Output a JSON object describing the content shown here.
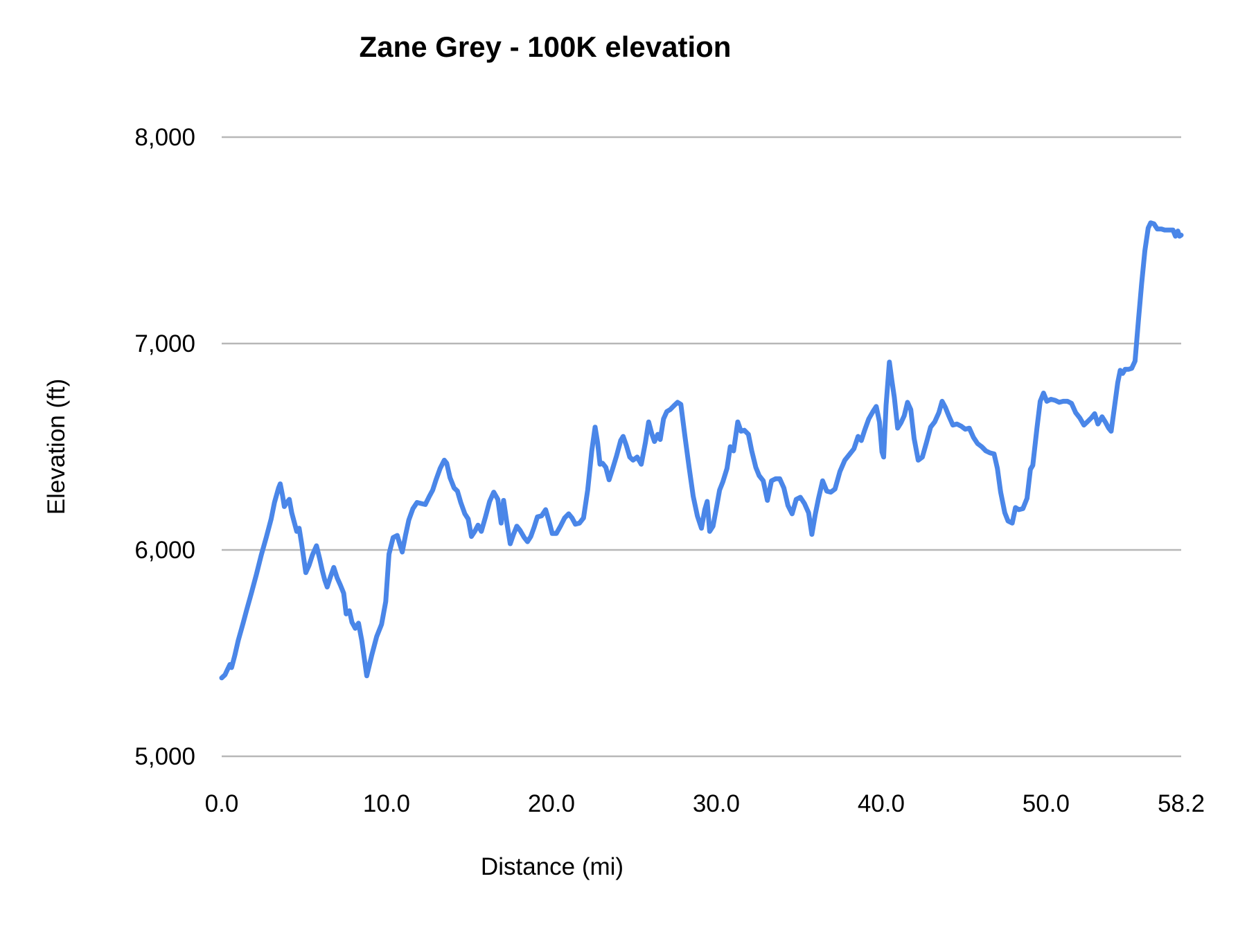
{
  "chart_data": {
    "type": "line",
    "title": "Zane Grey - 100K elevation",
    "xlabel": "Distance (mi)",
    "ylabel": "Elevation (ft)",
    "xlim": [
      0,
      58.2
    ],
    "ylim": [
      5000,
      8000
    ],
    "grid": "horizontal-only",
    "legend": "none",
    "line_color": "#4a86e8",
    "gridline_color": "#b7b7b7",
    "text_color": "#000000",
    "x_ticks": [
      {
        "v": 0,
        "label": "0.0"
      },
      {
        "v": 10,
        "label": "10.0"
      },
      {
        "v": 20,
        "label": "20.0"
      },
      {
        "v": 30,
        "label": "30.0"
      },
      {
        "v": 40,
        "label": "40.0"
      },
      {
        "v": 50,
        "label": "50.0"
      },
      {
        "v": 58.2,
        "label": "58.2"
      }
    ],
    "y_ticks": [
      {
        "v": 5000,
        "label": "5,000"
      },
      {
        "v": 6000,
        "label": "6,000"
      },
      {
        "v": 7000,
        "label": "7,000"
      },
      {
        "v": 8000,
        "label": "8,000"
      }
    ],
    "series": [
      {
        "name": "elevation",
        "points": [
          [
            0,
            5380
          ],
          [
            0.2,
            5395
          ],
          [
            0.35,
            5420
          ],
          [
            0.5,
            5445
          ],
          [
            0.6,
            5430
          ],
          [
            0.8,
            5490
          ],
          [
            1.0,
            5560
          ],
          [
            1.3,
            5645
          ],
          [
            1.5,
            5705
          ],
          [
            1.8,
            5790
          ],
          [
            2.1,
            5880
          ],
          [
            2.4,
            5975
          ],
          [
            2.7,
            6060
          ],
          [
            3.0,
            6150
          ],
          [
            3.2,
            6230
          ],
          [
            3.45,
            6300
          ],
          [
            3.55,
            6320
          ],
          [
            3.7,
            6260
          ],
          [
            3.8,
            6210
          ],
          [
            3.95,
            6230
          ],
          [
            4.1,
            6245
          ],
          [
            4.25,
            6180
          ],
          [
            4.4,
            6135
          ],
          [
            4.55,
            6090
          ],
          [
            4.7,
            6105
          ],
          [
            4.85,
            6030
          ],
          [
            5.1,
            5890
          ],
          [
            5.3,
            5925
          ],
          [
            5.5,
            5975
          ],
          [
            5.75,
            6020
          ],
          [
            5.95,
            5955
          ],
          [
            6.1,
            5900
          ],
          [
            6.25,
            5855
          ],
          [
            6.4,
            5820
          ],
          [
            6.6,
            5870
          ],
          [
            6.8,
            5915
          ],
          [
            7.0,
            5865
          ],
          [
            7.2,
            5830
          ],
          [
            7.4,
            5790
          ],
          [
            7.55,
            5690
          ],
          [
            7.75,
            5705
          ],
          [
            7.9,
            5650
          ],
          [
            8.1,
            5620
          ],
          [
            8.3,
            5645
          ],
          [
            8.5,
            5560
          ],
          [
            8.8,
            5390
          ],
          [
            9.1,
            5490
          ],
          [
            9.4,
            5580
          ],
          [
            9.7,
            5640
          ],
          [
            9.95,
            5750
          ],
          [
            10.15,
            5980
          ],
          [
            10.4,
            6060
          ],
          [
            10.65,
            6070
          ],
          [
            10.8,
            6030
          ],
          [
            10.95,
            5990
          ],
          [
            11.15,
            6070
          ],
          [
            11.35,
            6145
          ],
          [
            11.6,
            6200
          ],
          [
            11.85,
            6230
          ],
          [
            12.1,
            6225
          ],
          [
            12.35,
            6220
          ],
          [
            12.6,
            6260
          ],
          [
            12.8,
            6290
          ],
          [
            13.0,
            6340
          ],
          [
            13.25,
            6395
          ],
          [
            13.5,
            6435
          ],
          [
            13.65,
            6420
          ],
          [
            13.85,
            6350
          ],
          [
            14.1,
            6300
          ],
          [
            14.3,
            6285
          ],
          [
            14.5,
            6230
          ],
          [
            14.75,
            6175
          ],
          [
            14.95,
            6150
          ],
          [
            15.15,
            6065
          ],
          [
            15.35,
            6090
          ],
          [
            15.55,
            6120
          ],
          [
            15.75,
            6090
          ],
          [
            16.0,
            6160
          ],
          [
            16.25,
            6235
          ],
          [
            16.5,
            6280
          ],
          [
            16.75,
            6245
          ],
          [
            16.95,
            6130
          ],
          [
            17.1,
            6240
          ],
          [
            17.3,
            6130
          ],
          [
            17.5,
            6030
          ],
          [
            17.7,
            6075
          ],
          [
            17.9,
            6115
          ],
          [
            18.1,
            6095
          ],
          [
            18.35,
            6060
          ],
          [
            18.55,
            6040
          ],
          [
            18.75,
            6065
          ],
          [
            18.95,
            6110
          ],
          [
            19.15,
            6160
          ],
          [
            19.4,
            6165
          ],
          [
            19.65,
            6195
          ],
          [
            19.85,
            6140
          ],
          [
            20.05,
            6080
          ],
          [
            20.3,
            6080
          ],
          [
            20.55,
            6115
          ],
          [
            20.8,
            6155
          ],
          [
            21.05,
            6175
          ],
          [
            21.25,
            6155
          ],
          [
            21.45,
            6125
          ],
          [
            21.7,
            6130
          ],
          [
            21.95,
            6155
          ],
          [
            22.2,
            6290
          ],
          [
            22.45,
            6480
          ],
          [
            22.65,
            6595
          ],
          [
            22.8,
            6520
          ],
          [
            22.95,
            6415
          ],
          [
            23.1,
            6420
          ],
          [
            23.3,
            6400
          ],
          [
            23.5,
            6340
          ],
          [
            23.7,
            6390
          ],
          [
            23.95,
            6455
          ],
          [
            24.2,
            6530
          ],
          [
            24.35,
            6550
          ],
          [
            24.55,
            6505
          ],
          [
            24.75,
            6450
          ],
          [
            24.95,
            6435
          ],
          [
            25.2,
            6450
          ],
          [
            25.45,
            6415
          ],
          [
            25.7,
            6520
          ],
          [
            25.9,
            6620
          ],
          [
            26.1,
            6560
          ],
          [
            26.25,
            6525
          ],
          [
            26.45,
            6560
          ],
          [
            26.6,
            6535
          ],
          [
            26.8,
            6635
          ],
          [
            27.0,
            6670
          ],
          [
            27.2,
            6680
          ],
          [
            27.45,
            6700
          ],
          [
            27.65,
            6715
          ],
          [
            27.85,
            6705
          ],
          [
            28.1,
            6550
          ],
          [
            28.35,
            6400
          ],
          [
            28.6,
            6260
          ],
          [
            28.85,
            6165
          ],
          [
            29.1,
            6105
          ],
          [
            29.3,
            6195
          ],
          [
            29.45,
            6235
          ],
          [
            29.6,
            6090
          ],
          [
            29.8,
            6115
          ],
          [
            30.0,
            6200
          ],
          [
            30.2,
            6290
          ],
          [
            30.4,
            6330
          ],
          [
            30.65,
            6395
          ],
          [
            30.85,
            6500
          ],
          [
            31.05,
            6480
          ],
          [
            31.3,
            6620
          ],
          [
            31.5,
            6575
          ],
          [
            31.7,
            6580
          ],
          [
            31.95,
            6560
          ],
          [
            32.15,
            6480
          ],
          [
            32.4,
            6400
          ],
          [
            32.6,
            6360
          ],
          [
            32.85,
            6335
          ],
          [
            33.1,
            6240
          ],
          [
            33.35,
            6335
          ],
          [
            33.6,
            6345
          ],
          [
            33.85,
            6345
          ],
          [
            34.1,
            6300
          ],
          [
            34.35,
            6215
          ],
          [
            34.6,
            6175
          ],
          [
            34.85,
            6245
          ],
          [
            35.1,
            6255
          ],
          [
            35.35,
            6225
          ],
          [
            35.6,
            6180
          ],
          [
            35.8,
            6075
          ],
          [
            36.0,
            6170
          ],
          [
            36.2,
            6250
          ],
          [
            36.45,
            6335
          ],
          [
            36.7,
            6285
          ],
          [
            36.95,
            6280
          ],
          [
            37.2,
            6295
          ],
          [
            37.5,
            6380
          ],
          [
            37.8,
            6435
          ],
          [
            38.1,
            6465
          ],
          [
            38.35,
            6490
          ],
          [
            38.6,
            6550
          ],
          [
            38.8,
            6530
          ],
          [
            39.0,
            6580
          ],
          [
            39.25,
            6635
          ],
          [
            39.5,
            6670
          ],
          [
            39.7,
            6695
          ],
          [
            39.9,
            6620
          ],
          [
            40.05,
            6475
          ],
          [
            40.15,
            6450
          ],
          [
            40.3,
            6700
          ],
          [
            40.5,
            6910
          ],
          [
            40.65,
            6820
          ],
          [
            40.8,
            6740
          ],
          [
            41.0,
            6590
          ],
          [
            41.2,
            6615
          ],
          [
            41.4,
            6650
          ],
          [
            41.6,
            6715
          ],
          [
            41.8,
            6680
          ],
          [
            42.0,
            6540
          ],
          [
            42.25,
            6435
          ],
          [
            42.5,
            6450
          ],
          [
            42.75,
            6520
          ],
          [
            43.0,
            6595
          ],
          [
            43.25,
            6620
          ],
          [
            43.5,
            6665
          ],
          [
            43.7,
            6720
          ],
          [
            43.9,
            6690
          ],
          [
            44.1,
            6650
          ],
          [
            44.35,
            6605
          ],
          [
            44.6,
            6610
          ],
          [
            44.85,
            6600
          ],
          [
            45.1,
            6585
          ],
          [
            45.35,
            6590
          ],
          [
            45.6,
            6545
          ],
          [
            45.85,
            6515
          ],
          [
            46.1,
            6500
          ],
          [
            46.35,
            6480
          ],
          [
            46.6,
            6470
          ],
          [
            46.85,
            6465
          ],
          [
            47.05,
            6395
          ],
          [
            47.25,
            6280
          ],
          [
            47.5,
            6180
          ],
          [
            47.7,
            6140
          ],
          [
            47.95,
            6130
          ],
          [
            48.15,
            6205
          ],
          [
            48.35,
            6195
          ],
          [
            48.6,
            6200
          ],
          [
            48.85,
            6250
          ],
          [
            49.05,
            6390
          ],
          [
            49.2,
            6410
          ],
          [
            49.45,
            6590
          ],
          [
            49.65,
            6720
          ],
          [
            49.85,
            6760
          ],
          [
            50.05,
            6720
          ],
          [
            50.3,
            6730
          ],
          [
            50.55,
            6725
          ],
          [
            50.8,
            6715
          ],
          [
            51.05,
            6720
          ],
          [
            51.3,
            6720
          ],
          [
            51.55,
            6710
          ],
          [
            51.8,
            6665
          ],
          [
            52.05,
            6640
          ],
          [
            52.3,
            6605
          ],
          [
            52.5,
            6620
          ],
          [
            52.75,
            6640
          ],
          [
            52.95,
            6660
          ],
          [
            53.15,
            6610
          ],
          [
            53.4,
            6645
          ],
          [
            53.6,
            6620
          ],
          [
            53.8,
            6590
          ],
          [
            53.95,
            6575
          ],
          [
            54.15,
            6690
          ],
          [
            54.35,
            6810
          ],
          [
            54.5,
            6870
          ],
          [
            54.65,
            6855
          ],
          [
            54.8,
            6875
          ],
          [
            55.0,
            6875
          ],
          [
            55.2,
            6880
          ],
          [
            55.4,
            6915
          ],
          [
            55.6,
            7105
          ],
          [
            55.8,
            7290
          ],
          [
            56.0,
            7450
          ],
          [
            56.2,
            7560
          ],
          [
            56.35,
            7585
          ],
          [
            56.55,
            7580
          ],
          [
            56.75,
            7555
          ],
          [
            57.0,
            7555
          ],
          [
            57.2,
            7550
          ],
          [
            57.45,
            7550
          ],
          [
            57.7,
            7550
          ],
          [
            57.85,
            7520
          ],
          [
            58.0,
            7545
          ],
          [
            58.1,
            7520
          ],
          [
            58.2,
            7525
          ]
        ]
      }
    ]
  }
}
